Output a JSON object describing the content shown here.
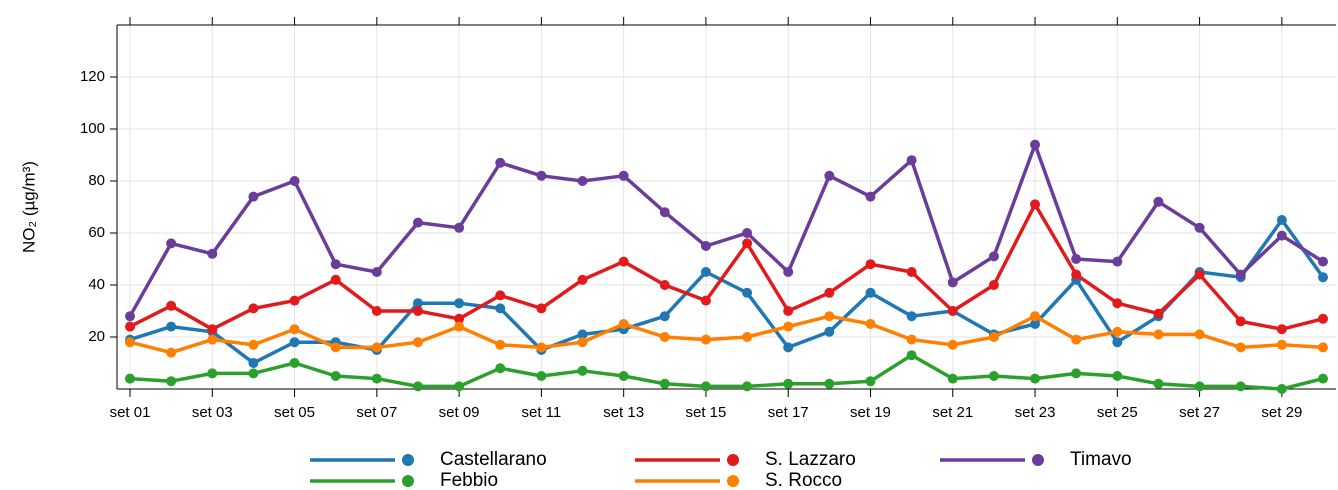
{
  "chart_data": {
    "type": "line",
    "y_label": "NO₂ (µg/m³)",
    "categories": [
      "set 01",
      null,
      "set 03",
      null,
      "set 05",
      null,
      "set 07",
      null,
      "set 09",
      null,
      "set 11",
      null,
      "set 13",
      null,
      "set 15",
      null,
      "set 17",
      null,
      "set 19",
      null,
      "set 21",
      null,
      "set 23",
      null,
      "set 25",
      null,
      "set 27",
      null,
      "set 29",
      null
    ],
    "series": [
      {
        "name": "Castellarano",
        "color": "#1f77b4",
        "values": [
          19,
          24,
          22,
          10,
          18,
          18,
          15,
          33,
          33,
          31,
          15,
          21,
          23,
          28,
          45,
          37,
          16,
          22,
          37,
          28,
          30,
          21,
          25,
          42,
          18,
          28,
          45,
          43,
          65,
          43
        ]
      },
      {
        "name": "Febbio",
        "color": "#2ca02c",
        "values": [
          4,
          3,
          6,
          6,
          10,
          5,
          4,
          1,
          1,
          8,
          5,
          7,
          5,
          2,
          1,
          1,
          2,
          2,
          3,
          13,
          4,
          5,
          4,
          6,
          5,
          2,
          1,
          1,
          0,
          4
        ]
      },
      {
        "name": "S. Lazzaro",
        "color": "#e31a1c",
        "values": [
          24,
          32,
          23,
          31,
          34,
          42,
          30,
          30,
          27,
          36,
          31,
          42,
          49,
          40,
          34,
          56,
          30,
          37,
          48,
          45,
          30,
          40,
          71,
          44,
          33,
          29,
          44,
          26,
          23,
          27
        ]
      },
      {
        "name": "S. Rocco",
        "color": "#ff7f00",
        "values": [
          18,
          14,
          19,
          17,
          23,
          16,
          16,
          18,
          24,
          17,
          16,
          18,
          25,
          20,
          19,
          20,
          24,
          28,
          25,
          19,
          17,
          20,
          28,
          19,
          22,
          21,
          21,
          16,
          17,
          16
        ]
      },
      {
        "name": "Timavo",
        "color": "#6a3d9a",
        "values": [
          28,
          56,
          52,
          74,
          80,
          48,
          45,
          64,
          62,
          87,
          82,
          80,
          82,
          68,
          55,
          60,
          45,
          82,
          74,
          88,
          41,
          51,
          94,
          50,
          49,
          72,
          62,
          44,
          59,
          49
        ]
      }
    ],
    "ylim": [
      0,
      140
    ],
    "yticks": [
      20,
      40,
      60,
      80,
      100,
      120
    ],
    "grid": true,
    "legend": "bottom"
  }
}
